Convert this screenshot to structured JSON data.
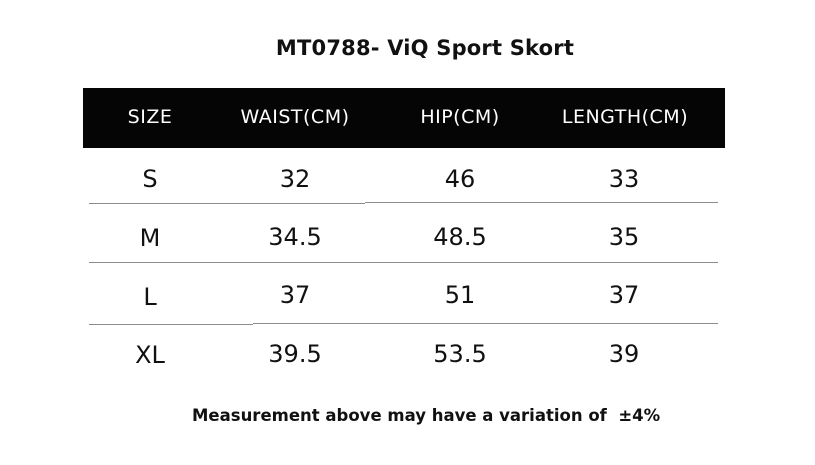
{
  "title": "MT0788- ViQ Sport Skort",
  "table": {
    "headers": [
      "SIZE",
      "WAIST(CM)",
      "HIP(CM)",
      "LENGTH(CM)"
    ],
    "rows": [
      [
        "S",
        "32",
        "46",
        "33"
      ],
      [
        "M",
        "34.5",
        "48.5",
        "35"
      ],
      [
        "L",
        "37",
        "51",
        "37"
      ],
      [
        "XL",
        "39.5",
        "53.5",
        "39"
      ]
    ]
  },
  "note": "Measurement above may have a variation of  ±4%",
  "colors": {
    "header_bg": "#050505",
    "header_text": "#ffffff",
    "body_text": "#111111",
    "divider": "#8c8c8c"
  }
}
